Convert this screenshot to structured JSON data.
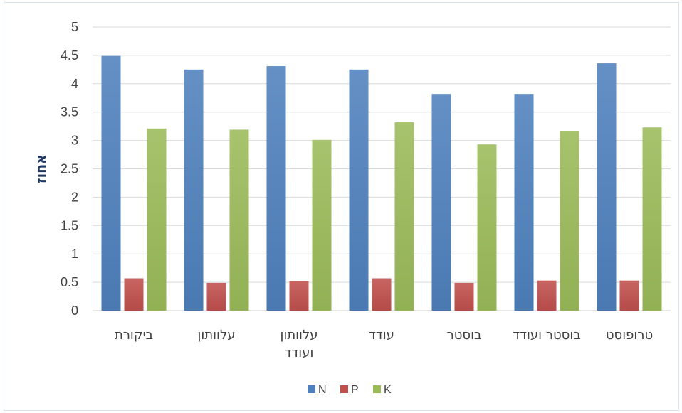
{
  "chart_data": {
    "type": "bar",
    "title": "",
    "xlabel": "",
    "ylabel": "אחוז",
    "ylim": [
      0,
      5
    ],
    "yticks": [
      "0",
      "0.5",
      "1",
      "1.5",
      "2",
      "2.5",
      "3",
      "3.5",
      "4",
      "4.5",
      "5"
    ],
    "grid": true,
    "legend_position": "bottom",
    "categories": [
      [
        "ביקורת"
      ],
      [
        "עלוותון"
      ],
      [
        "עלוותון",
        "ועודד"
      ],
      [
        "עודד"
      ],
      [
        "בוסטר"
      ],
      [
        "בוסטר ועודד"
      ],
      [
        "טרופוסט"
      ]
    ],
    "series": [
      {
        "name": "N",
        "color": "#4f81bd",
        "values": [
          4.49,
          4.25,
          4.31,
          4.25,
          3.82,
          3.82,
          4.36
        ]
      },
      {
        "name": "P",
        "color": "#c0504d",
        "values": [
          0.57,
          0.49,
          0.52,
          0.57,
          0.49,
          0.53,
          0.53
        ]
      },
      {
        "name": "K",
        "color": "#9bbb59",
        "values": [
          3.21,
          3.19,
          3.01,
          3.32,
          2.93,
          3.17,
          3.23
        ]
      }
    ]
  }
}
